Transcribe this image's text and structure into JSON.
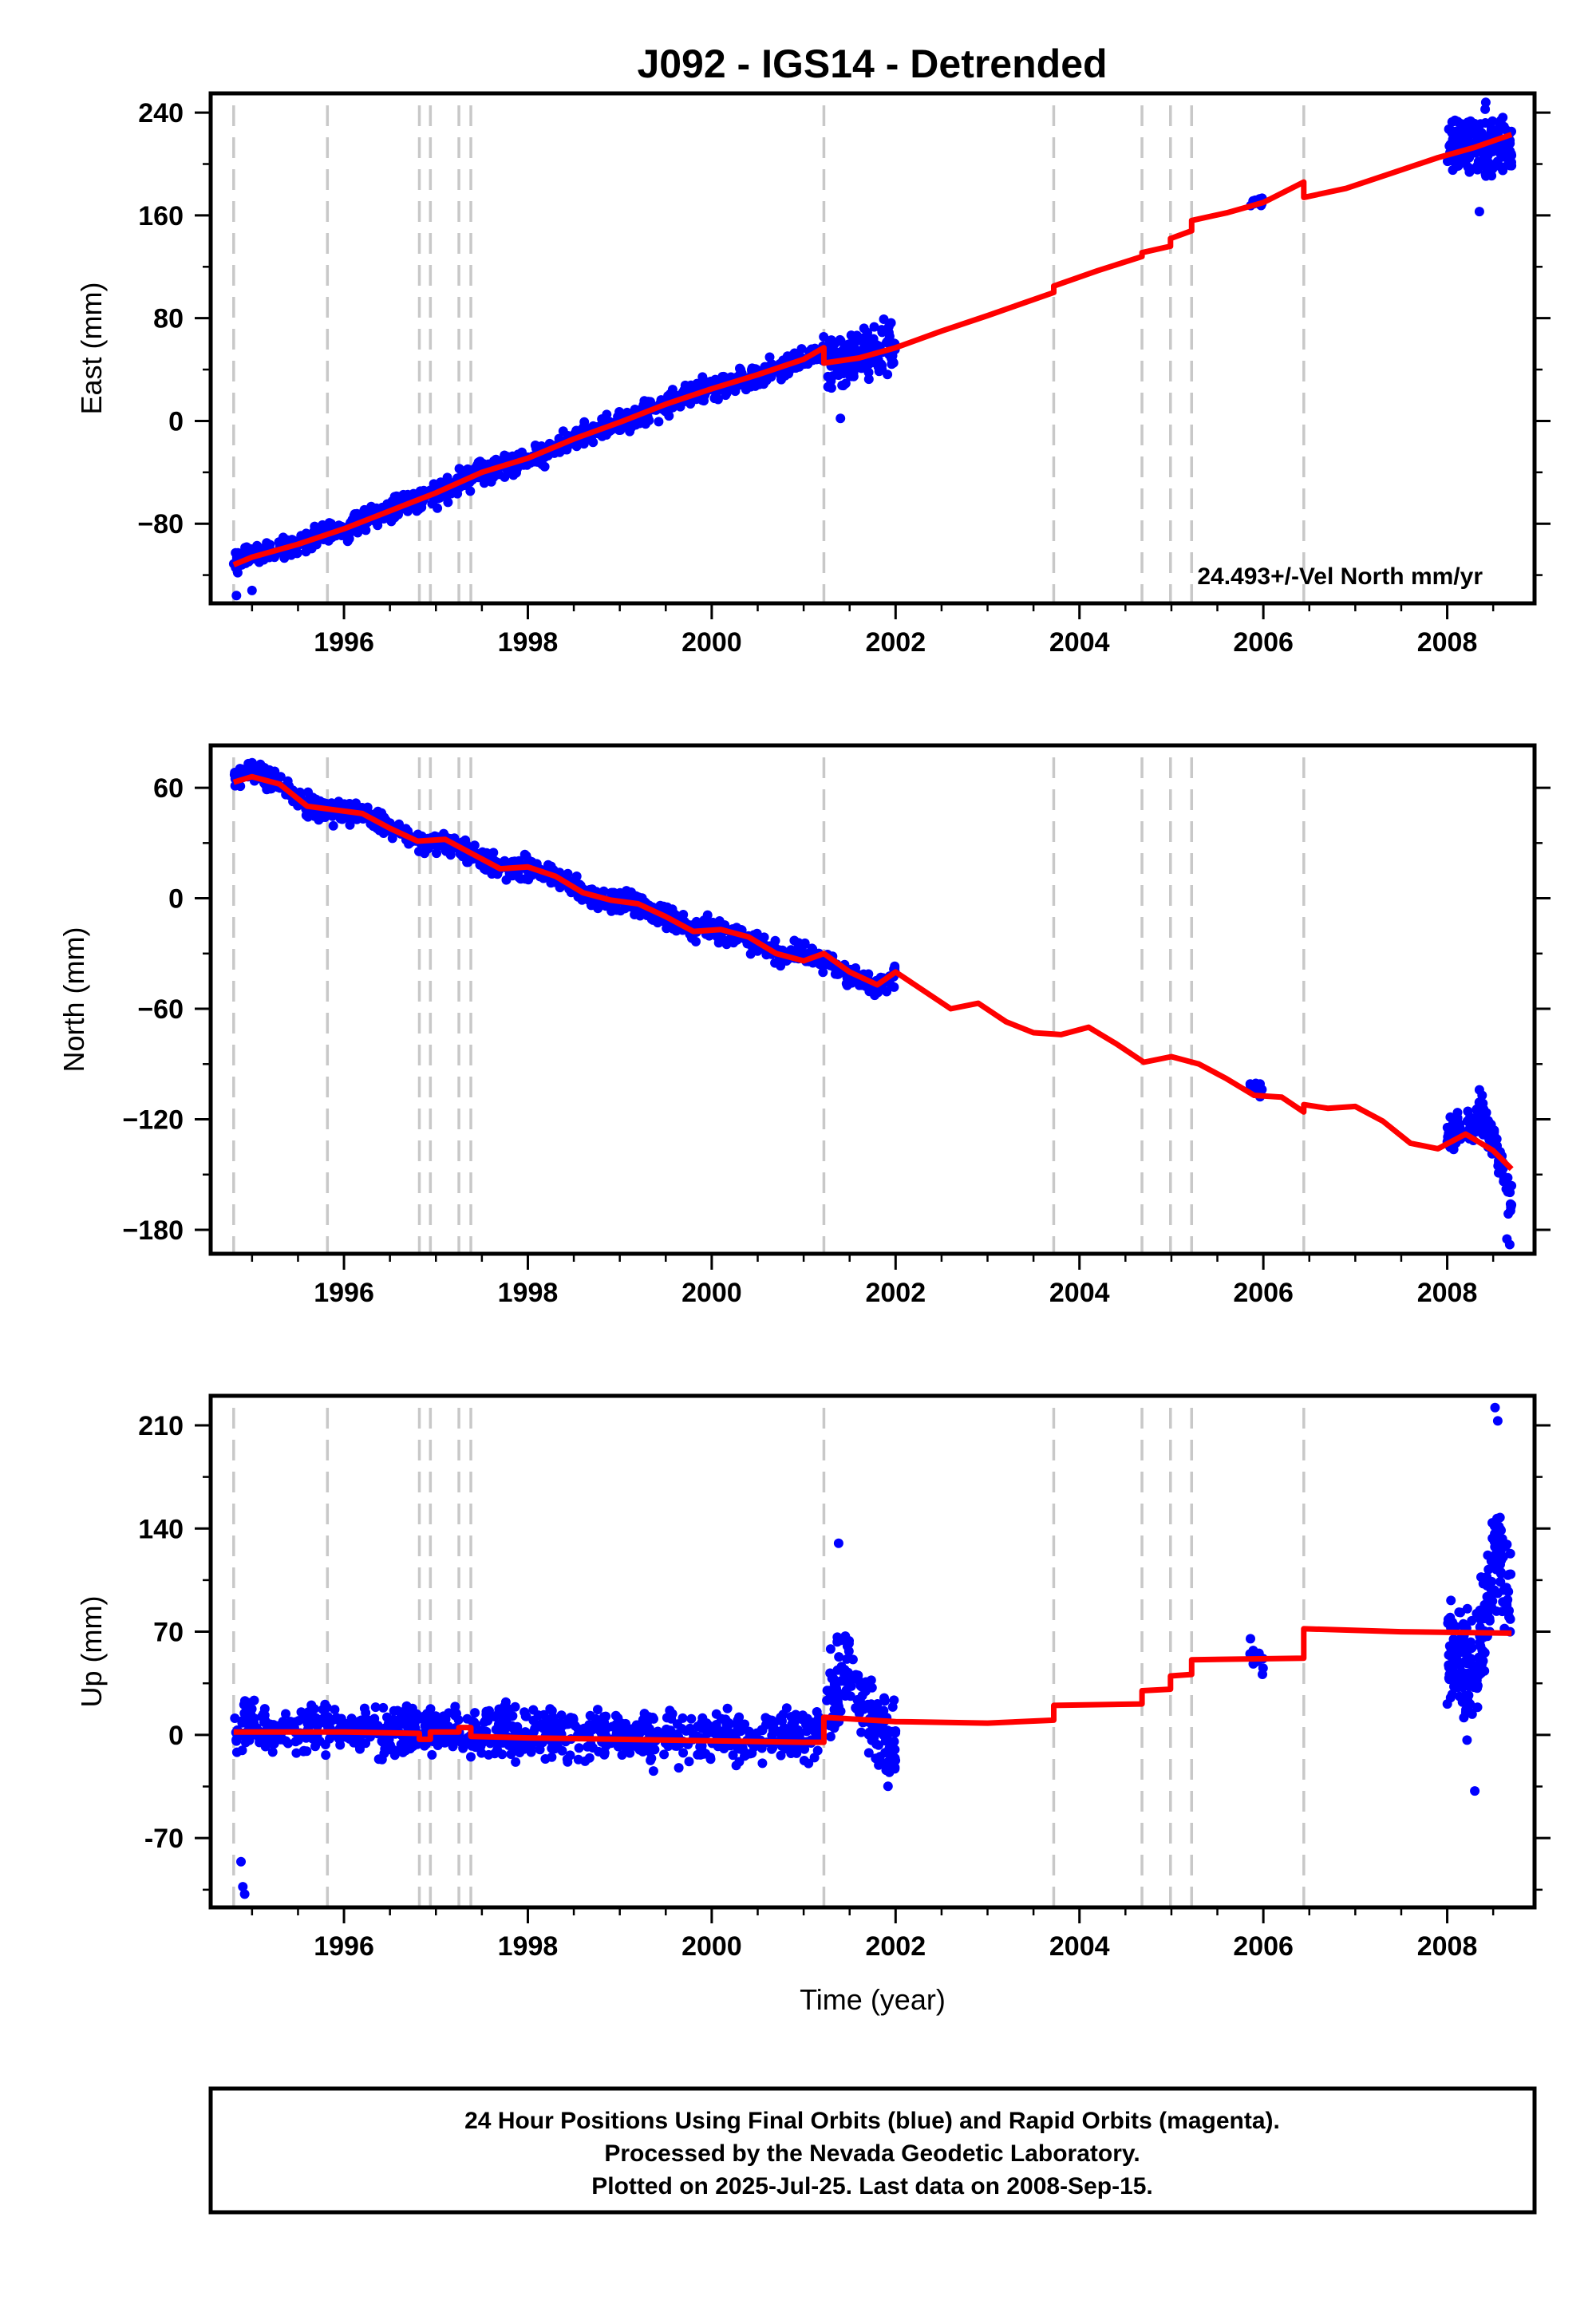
{
  "figure": {
    "title": "J092 - IGS14 - Detrended",
    "footer": {
      "lines": [
        "24 Hour Positions Using Final Orbits (blue) and Rapid Orbits (magenta).",
        "Processed by the Nevada Geodetic Laboratory.",
        "Plotted on 2025-Jul-25. Last data on 2008-Sep-15."
      ]
    }
  },
  "chart_data": [
    {
      "type": "scatter",
      "title": "J092 - IGS14 - Detrended",
      "ylabel": "East (mm)",
      "xlabel": "",
      "note": "24.493+/-Vel North mm/yr",
      "xlim": [
        1994.55,
        2008.95
      ],
      "ylim": [
        -142,
        255
      ],
      "yticks": [
        240,
        160,
        80,
        0,
        -80
      ],
      "ytick_labels": [
        "240",
        "160",
        "80",
        "0",
        "−80"
      ],
      "xticks": [
        1996,
        1998,
        2000,
        2002,
        2004,
        2006,
        2008
      ],
      "xtick_labels": [
        "1996",
        "1998",
        "2000",
        "2002",
        "2004",
        "2006",
        "2008"
      ],
      "grid": false,
      "colors": {
        "points": "#0000ff",
        "model": "#ff0000",
        "breaks": "#c8c8c8"
      },
      "breaks": [
        1994.8,
        1995.82,
        1996.82,
        1996.94,
        1997.25,
        1997.38,
        2001.22,
        2003.72,
        2004.68,
        2004.99,
        2005.22,
        2006.44
      ],
      "model_line": {
        "x": [
          1994.8,
          1995.0,
          1995.5,
          1996.0,
          1996.5,
          1997.0,
          1997.5,
          1998.0,
          1998.5,
          1999.0,
          1999.5,
          2000.0,
          2000.5,
          2001.0,
          2001.22,
          2001.22,
          2001.6,
          2002.0,
          2002.5,
          2003.0,
          2003.72,
          2003.72,
          2004.2,
          2004.68,
          2004.68,
          2004.99,
          2004.99,
          2005.22,
          2005.22,
          2005.6,
          2006.0,
          2006.44,
          2006.44,
          2006.9,
          2007.4,
          2007.9,
          2008.3,
          2008.7
        ],
        "y": [
          -112,
          -106,
          -96,
          -84,
          -70,
          -56,
          -40,
          -29,
          -14,
          -1,
          13,
          25,
          36,
          48,
          57,
          45,
          49,
          57,
          70,
          82,
          100,
          105,
          117,
          128,
          131,
          136,
          142,
          148,
          156,
          162,
          170,
          186,
          174,
          181,
          193,
          205,
          213,
          223
        ]
      },
      "points": {
        "segments": [
          {
            "x": [
              1994.8,
              1995.0,
              1995.5,
              1996.0,
              1996.5,
              1997.0,
              1997.5,
              1998.0,
              1998.5,
              1999.0,
              1999.5,
              2000.0,
              2000.5,
              2001.0,
              2001.22
            ],
            "y": [
              -110,
              -105,
              -96,
              -84,
              -70,
              -56,
              -40,
              -29,
              -14,
              -1,
              13,
              25,
              36,
              48,
              54
            ],
            "spread": 6,
            "n": 900
          },
          {
            "x": [
              2001.25,
              2001.6,
              2002.0
            ],
            "y": [
              46,
              50,
              57
            ],
            "spread": 13,
            "n": 160
          },
          {
            "x": [
              2005.85,
              2006.0
            ],
            "y": [
              169,
              171
            ],
            "spread": 2,
            "n": 12
          },
          {
            "x": [
              2008.0,
              2008.3,
              2008.7
            ],
            "y": [
              214,
              216,
              211
            ],
            "spread": 15,
            "n": 180
          }
        ],
        "extremes": {
          "x": [
            1994.83,
            1995.0,
            2001.4,
            2008.35,
            2008.42
          ],
          "y": [
            -136,
            -132,
            2,
            163,
            248
          ]
        }
      }
    },
    {
      "type": "scatter",
      "ylabel": "North (mm)",
      "xlabel": "",
      "xlim": [
        1994.55,
        2008.95
      ],
      "ylim": [
        -193,
        83
      ],
      "yticks": [
        60,
        0,
        -60,
        -120,
        -180
      ],
      "ytick_labels": [
        "60",
        "0",
        "−60",
        "−120",
        "−180"
      ],
      "xticks": [
        1996,
        1998,
        2000,
        2002,
        2004,
        2006,
        2008
      ],
      "xtick_labels": [
        "1996",
        "1998",
        "2000",
        "2002",
        "2004",
        "2006",
        "2008"
      ],
      "grid": false,
      "colors": {
        "points": "#0000ff",
        "model": "#ff0000",
        "breaks": "#c8c8c8"
      },
      "breaks": [
        1994.8,
        1995.82,
        1996.82,
        1996.94,
        1997.25,
        1997.38,
        2001.22,
        2003.72,
        2004.68,
        2004.99,
        2005.22,
        2006.44
      ],
      "model_line": {
        "x": [
          1994.8,
          1995.0,
          1995.3,
          1995.6,
          1995.9,
          1996.2,
          1996.5,
          1996.8,
          1997.1,
          1997.4,
          1997.7,
          1998.0,
          1998.3,
          1998.6,
          1998.9,
          1999.2,
          1999.5,
          1999.8,
          2000.1,
          2000.4,
          2000.7,
          2001.0,
          2001.22,
          2001.5,
          2001.8,
          2002.0,
          2002.3,
          2002.6,
          2002.9,
          2003.2,
          2003.5,
          2003.8,
          2004.1,
          2004.4,
          2004.7,
          2005.0,
          2005.3,
          2005.6,
          2005.9,
          2006.2,
          2006.44,
          2006.44,
          2006.7,
          2007.0,
          2007.3,
          2007.6,
          2007.9,
          2008.2,
          2008.5,
          2008.7
        ],
        "y": [
          63,
          66,
          62,
          50,
          48,
          46,
          38,
          31,
          32,
          24,
          16,
          17,
          12,
          3,
          -1,
          -3,
          -10,
          -18,
          -17,
          -21,
          -30,
          -34,
          -30,
          -40,
          -47,
          -40,
          -50,
          -60,
          -57,
          -67,
          -73,
          -74,
          -70,
          -79,
          -89,
          -86,
          -90,
          -98,
          -107,
          -108,
          -116,
          -112,
          -114,
          -113,
          -121,
          -133,
          -136,
          -128,
          -137,
          -147
        ],
        "breakpoints": [
          2001.22,
          2006.44
        ]
      },
      "points": {
        "segments": [
          {
            "x": [
              1994.8,
              1995.0,
              1995.3,
              1995.6,
              1995.9,
              1996.2,
              1996.5,
              1996.8,
              1997.1,
              1997.4,
              1997.7,
              1998.0,
              1998.3,
              1998.6,
              1998.9,
              1999.2,
              1999.5,
              1999.8,
              2000.1,
              2000.4,
              2000.7,
              2001.0,
              2001.22,
              2001.5,
              2001.8,
              2002.0
            ],
            "y": [
              66,
              70,
              63,
              50,
              46,
              46,
              38,
              31,
              30,
              24,
              16,
              16,
              12,
              3,
              -1,
              -3,
              -10,
              -18,
              -17,
              -22,
              -30,
              -30,
              -33,
              -42,
              -47,
              -42
            ],
            "spread": 4,
            "n": 950
          },
          {
            "x": [
              2005.85,
              2006.0
            ],
            "y": [
              -100,
              -104
            ],
            "spread": 3,
            "n": 14
          },
          {
            "x": [
              2008.0,
              2008.35,
              2008.5,
              2008.7
            ],
            "y": [
              -128,
              -120,
              -130,
              -168
            ],
            "spread": 6,
            "n": 160
          }
        ],
        "extremes": {
          "x": [
            2008.35,
            2008.38,
            2008.65,
            2008.68
          ],
          "y": [
            -104,
            -107,
            -185,
            -188
          ]
        }
      }
    },
    {
      "type": "scatter",
      "ylabel": "Up (mm)",
      "xlabel": "Time (year)",
      "xlim": [
        1994.55,
        2008.95
      ],
      "ylim": [
        -117,
        230
      ],
      "yticks": [
        210,
        140,
        70,
        0,
        -70
      ],
      "ytick_labels": [
        "210",
        "140",
        "70",
        "0",
        "-70"
      ],
      "xticks": [
        1996,
        1998,
        2000,
        2002,
        2004,
        2006,
        2008
      ],
      "xtick_labels": [
        "1996",
        "1998",
        "2000",
        "2002",
        "2004",
        "2006",
        "2008"
      ],
      "grid": false,
      "colors": {
        "points": "#0000ff",
        "model": "#ff0000",
        "breaks": "#c8c8c8"
      },
      "breaks": [
        1994.8,
        1995.82,
        1996.82,
        1996.94,
        1997.25,
        1997.38,
        2001.22,
        2003.72,
        2004.68,
        2004.99,
        2005.22,
        2006.44
      ],
      "model_line": {
        "x": [
          1994.8,
          1995.5,
          1996.0,
          1996.82,
          1996.82,
          1996.94,
          1996.94,
          1997.25,
          1997.25,
          1997.38,
          1997.38,
          1998.0,
          1999.0,
          2000.0,
          2001.0,
          2001.22,
          2001.22,
          2002.0,
          2003.0,
          2003.72,
          2003.72,
          2004.68,
          2004.68,
          2004.99,
          2004.99,
          2005.22,
          2005.22,
          2006.44,
          2006.44,
          2007.5,
          2008.7
        ],
        "y": [
          2,
          2,
          2,
          1,
          -3,
          -3,
          2,
          2,
          5,
          5,
          -1,
          -2,
          -3,
          -4,
          -5,
          -5,
          12,
          9,
          8,
          10,
          20,
          21,
          30,
          31,
          40,
          41,
          51,
          52,
          72,
          70,
          69
        ]
      },
      "points": {
        "segments": [
          {
            "x": [
              1994.8,
              1996.0,
              1998.0,
              2000.0,
              2001.2
            ],
            "y": [
              4,
              3,
              1,
              -2,
              0
            ],
            "spread": 11,
            "n": 900
          },
          {
            "x": [
              2001.25,
              2001.5,
              2001.75,
              2002.0
            ],
            "y": [
              20,
              50,
              5,
              -10
            ],
            "spread": 20,
            "n": 160
          },
          {
            "x": [
              2005.85,
              2006.0
            ],
            "y": [
              55,
              48
            ],
            "spread": 6,
            "n": 14
          },
          {
            "x": [
              2008.0,
              2008.3,
              2008.55,
              2008.7
            ],
            "y": [
              55,
              40,
              125,
              80
            ],
            "spread": 25,
            "n": 220
          }
        ],
        "extremes": {
          "x": [
            1994.88,
            1994.9,
            1994.92,
            2001.38,
            2008.52,
            2008.55,
            2008.3
          ],
          "y": [
            -86,
            -103,
            -108,
            130,
            222,
            213,
            -38
          ]
        }
      }
    }
  ]
}
